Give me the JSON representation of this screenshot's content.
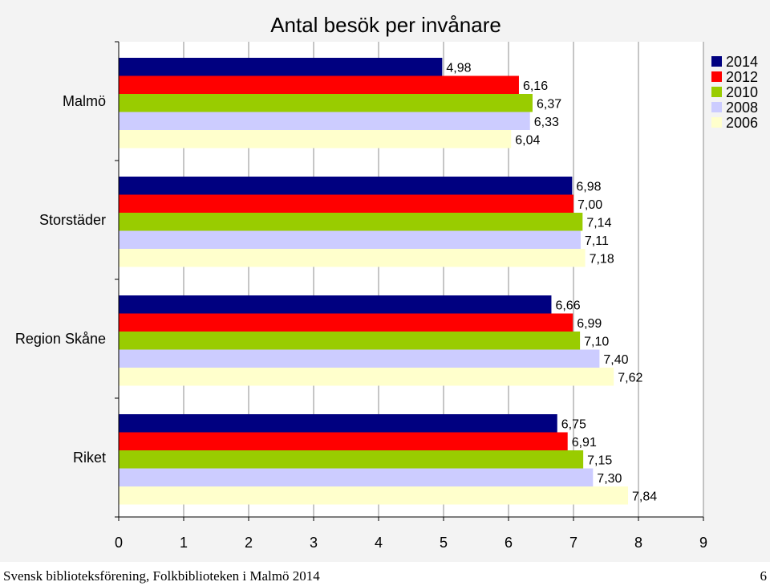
{
  "chart_data": {
    "type": "bar",
    "orientation": "horizontal",
    "title": "Antal besök per invånare",
    "categories": [
      "Malmö",
      "Storstäder",
      "Region Skåne",
      "Riket"
    ],
    "series": [
      {
        "name": "2014",
        "color": "#000080",
        "values": [
          4.98,
          6.98,
          6.66,
          6.75
        ],
        "labels": [
          "4,98",
          "6,98",
          "6,66",
          "6,75"
        ]
      },
      {
        "name": "2012",
        "color": "#ff0000",
        "values": [
          6.16,
          7.0,
          6.99,
          6.91
        ],
        "labels": [
          "6,16",
          "7,00",
          "6,99",
          "6,91"
        ]
      },
      {
        "name": "2010",
        "color": "#99cc00",
        "values": [
          6.37,
          7.14,
          7.1,
          7.15
        ],
        "labels": [
          "6,37",
          "7,14",
          "7,10",
          "7,15"
        ]
      },
      {
        "name": "2008",
        "color": "#ccccff",
        "values": [
          6.33,
          7.11,
          7.4,
          7.3
        ],
        "labels": [
          "6,33",
          "7,11",
          "7,40",
          "7,30"
        ]
      },
      {
        "name": "2006",
        "color": "#ffffcc",
        "values": [
          6.04,
          7.18,
          7.62,
          7.84
        ],
        "labels": [
          "6,04",
          "7,18",
          "7,62",
          "7,84"
        ]
      }
    ],
    "xlim": [
      0,
      9
    ],
    "xticks": [
      "0",
      "1",
      "2",
      "3",
      "4",
      "5",
      "6",
      "7",
      "8",
      "9"
    ],
    "grid": true,
    "legend": "top-right"
  },
  "footer": {
    "source": "Svensk biblioteksförening, Folkbiblioteken i Malmö 2014",
    "page_number": "6"
  }
}
